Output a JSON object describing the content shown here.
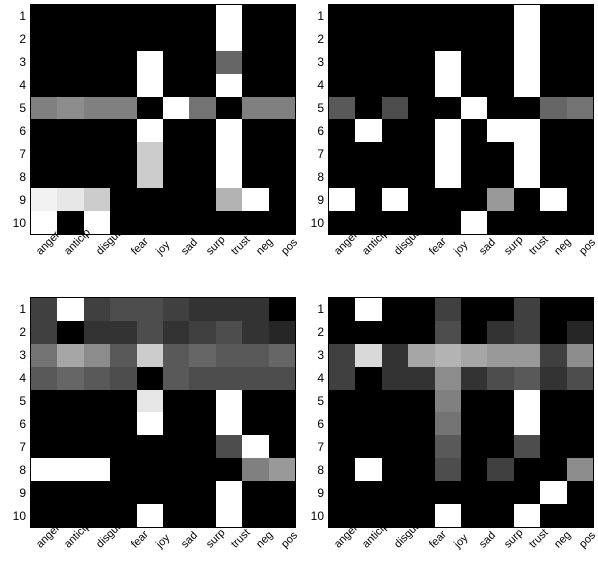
{
  "background_color": "#ffffff",
  "text_color": "#000000",
  "grid": {
    "rows": 2,
    "cols": 2
  },
  "row_labels": [
    "1",
    "2",
    "3",
    "4",
    "5",
    "6",
    "7",
    "8",
    "9",
    "10"
  ],
  "col_labels": [
    "anger",
    "anticip",
    "disgust",
    "fear",
    "joy",
    "sad",
    "surp",
    "trust",
    "neg",
    "pos"
  ],
  "label_fontsize_y": 12,
  "label_fontsize_x": 11,
  "xlabel_rotation_deg": -45,
  "heatmap_border_color": "#000000",
  "value_scale": [
    0,
    1
  ],
  "panels": [
    {
      "id": "top-left",
      "rows": 10,
      "cols": 10,
      "colorscale": "grayscale_black_to_white",
      "values": [
        [
          0.0,
          0.0,
          0.0,
          0.0,
          0.0,
          0.0,
          0.0,
          1.0,
          0.0,
          0.0
        ],
        [
          0.0,
          0.0,
          0.0,
          0.0,
          0.0,
          0.0,
          0.0,
          1.0,
          0.0,
          0.0
        ],
        [
          0.0,
          0.0,
          0.0,
          0.0,
          1.0,
          0.0,
          0.0,
          0.4,
          0.0,
          0.0
        ],
        [
          0.0,
          0.0,
          0.0,
          0.0,
          1.0,
          0.0,
          0.0,
          1.0,
          0.0,
          0.0
        ],
        [
          0.5,
          0.55,
          0.5,
          0.5,
          0.0,
          1.0,
          0.45,
          0.0,
          0.5,
          0.5
        ],
        [
          0.0,
          0.0,
          0.0,
          0.0,
          1.0,
          0.0,
          0.0,
          1.0,
          0.0,
          0.0
        ],
        [
          0.0,
          0.0,
          0.0,
          0.0,
          0.8,
          0.0,
          0.0,
          1.0,
          0.0,
          0.0
        ],
        [
          0.0,
          0.0,
          0.0,
          0.0,
          0.8,
          0.0,
          0.0,
          1.0,
          0.0,
          0.0
        ],
        [
          0.95,
          0.9,
          0.8,
          0.0,
          0.0,
          0.0,
          0.0,
          0.7,
          1.0,
          0.0
        ],
        [
          1.0,
          0.0,
          1.0,
          0.0,
          0.0,
          0.0,
          0.0,
          0.0,
          0.0,
          0.0
        ]
      ]
    },
    {
      "id": "top-right",
      "rows": 10,
      "cols": 10,
      "colorscale": "grayscale_black_to_white",
      "values": [
        [
          0.0,
          0.0,
          0.0,
          0.0,
          0.0,
          0.0,
          0.0,
          1.0,
          0.0,
          0.0
        ],
        [
          0.0,
          0.0,
          0.0,
          0.0,
          0.0,
          0.0,
          0.0,
          1.0,
          0.0,
          0.0
        ],
        [
          0.0,
          0.0,
          0.0,
          0.0,
          1.0,
          0.0,
          0.0,
          1.0,
          0.0,
          0.0
        ],
        [
          0.0,
          0.0,
          0.0,
          0.0,
          1.0,
          0.0,
          0.0,
          1.0,
          0.0,
          0.0
        ],
        [
          0.35,
          0.0,
          0.3,
          0.0,
          0.0,
          1.0,
          0.0,
          0.0,
          0.4,
          0.45
        ],
        [
          0.0,
          1.0,
          0.0,
          0.0,
          1.0,
          0.0,
          1.0,
          1.0,
          0.0,
          0.0
        ],
        [
          0.0,
          0.0,
          0.0,
          0.0,
          1.0,
          0.0,
          0.0,
          1.0,
          0.0,
          0.0
        ],
        [
          0.0,
          0.0,
          0.0,
          0.0,
          1.0,
          0.0,
          0.0,
          1.0,
          0.0,
          0.0
        ],
        [
          1.0,
          0.0,
          1.0,
          0.0,
          0.0,
          0.0,
          0.6,
          0.0,
          1.0,
          0.0
        ],
        [
          0.0,
          0.0,
          0.0,
          0.0,
          0.0,
          1.0,
          0.0,
          0.0,
          0.0,
          0.0
        ]
      ]
    },
    {
      "id": "bottom-left",
      "rows": 10,
      "cols": 10,
      "colorscale": "grayscale_black_to_white",
      "values": [
        [
          0.25,
          1.0,
          0.25,
          0.3,
          0.3,
          0.25,
          0.2,
          0.2,
          0.2,
          0.0
        ],
        [
          0.25,
          0.0,
          0.2,
          0.2,
          0.3,
          0.2,
          0.25,
          0.3,
          0.2,
          0.15
        ],
        [
          0.45,
          0.65,
          0.55,
          0.35,
          0.8,
          0.35,
          0.4,
          0.35,
          0.35,
          0.4
        ],
        [
          0.35,
          0.4,
          0.35,
          0.3,
          0.0,
          0.35,
          0.3,
          0.3,
          0.3,
          0.3
        ],
        [
          0.0,
          0.0,
          0.0,
          0.0,
          0.9,
          0.0,
          0.0,
          1.0,
          0.0,
          0.0
        ],
        [
          0.0,
          0.0,
          0.0,
          0.0,
          1.0,
          0.0,
          0.0,
          1.0,
          0.0,
          0.0
        ],
        [
          0.0,
          0.0,
          0.0,
          0.0,
          0.0,
          0.0,
          0.0,
          0.3,
          1.0,
          0.0
        ],
        [
          1.0,
          1.0,
          1.0,
          0.0,
          0.0,
          0.0,
          0.0,
          0.0,
          0.5,
          0.6
        ],
        [
          0.0,
          0.0,
          0.0,
          0.0,
          0.0,
          0.0,
          0.0,
          1.0,
          0.0,
          0.0
        ],
        [
          0.0,
          0.0,
          0.0,
          0.0,
          1.0,
          0.0,
          0.0,
          1.0,
          0.0,
          0.0
        ]
      ]
    },
    {
      "id": "bottom-right",
      "rows": 10,
      "cols": 10,
      "colorscale": "grayscale_black_to_white",
      "values": [
        [
          0.0,
          1.0,
          0.0,
          0.0,
          0.25,
          0.0,
          0.0,
          0.25,
          0.0,
          0.0
        ],
        [
          0.0,
          0.0,
          0.0,
          0.0,
          0.3,
          0.0,
          0.2,
          0.25,
          0.0,
          0.15
        ],
        [
          0.25,
          0.85,
          0.2,
          0.65,
          0.7,
          0.65,
          0.6,
          0.6,
          0.25,
          0.55
        ],
        [
          0.25,
          0.0,
          0.2,
          0.2,
          0.55,
          0.2,
          0.3,
          0.35,
          0.2,
          0.3
        ],
        [
          0.0,
          0.0,
          0.0,
          0.0,
          0.5,
          0.0,
          0.0,
          1.0,
          0.0,
          0.0
        ],
        [
          0.0,
          0.0,
          0.0,
          0.0,
          0.45,
          0.0,
          0.0,
          1.0,
          0.0,
          0.0
        ],
        [
          0.0,
          0.0,
          0.0,
          0.0,
          0.35,
          0.0,
          0.0,
          0.3,
          0.0,
          0.0
        ],
        [
          0.0,
          1.0,
          0.0,
          0.0,
          0.3,
          0.0,
          0.25,
          0.0,
          0.0,
          0.55
        ],
        [
          0.0,
          0.0,
          0.0,
          0.0,
          0.0,
          0.0,
          0.0,
          0.0,
          1.0,
          0.0
        ],
        [
          0.0,
          0.0,
          0.0,
          0.0,
          1.0,
          0.0,
          0.0,
          1.0,
          0.0,
          0.0
        ]
      ]
    }
  ]
}
